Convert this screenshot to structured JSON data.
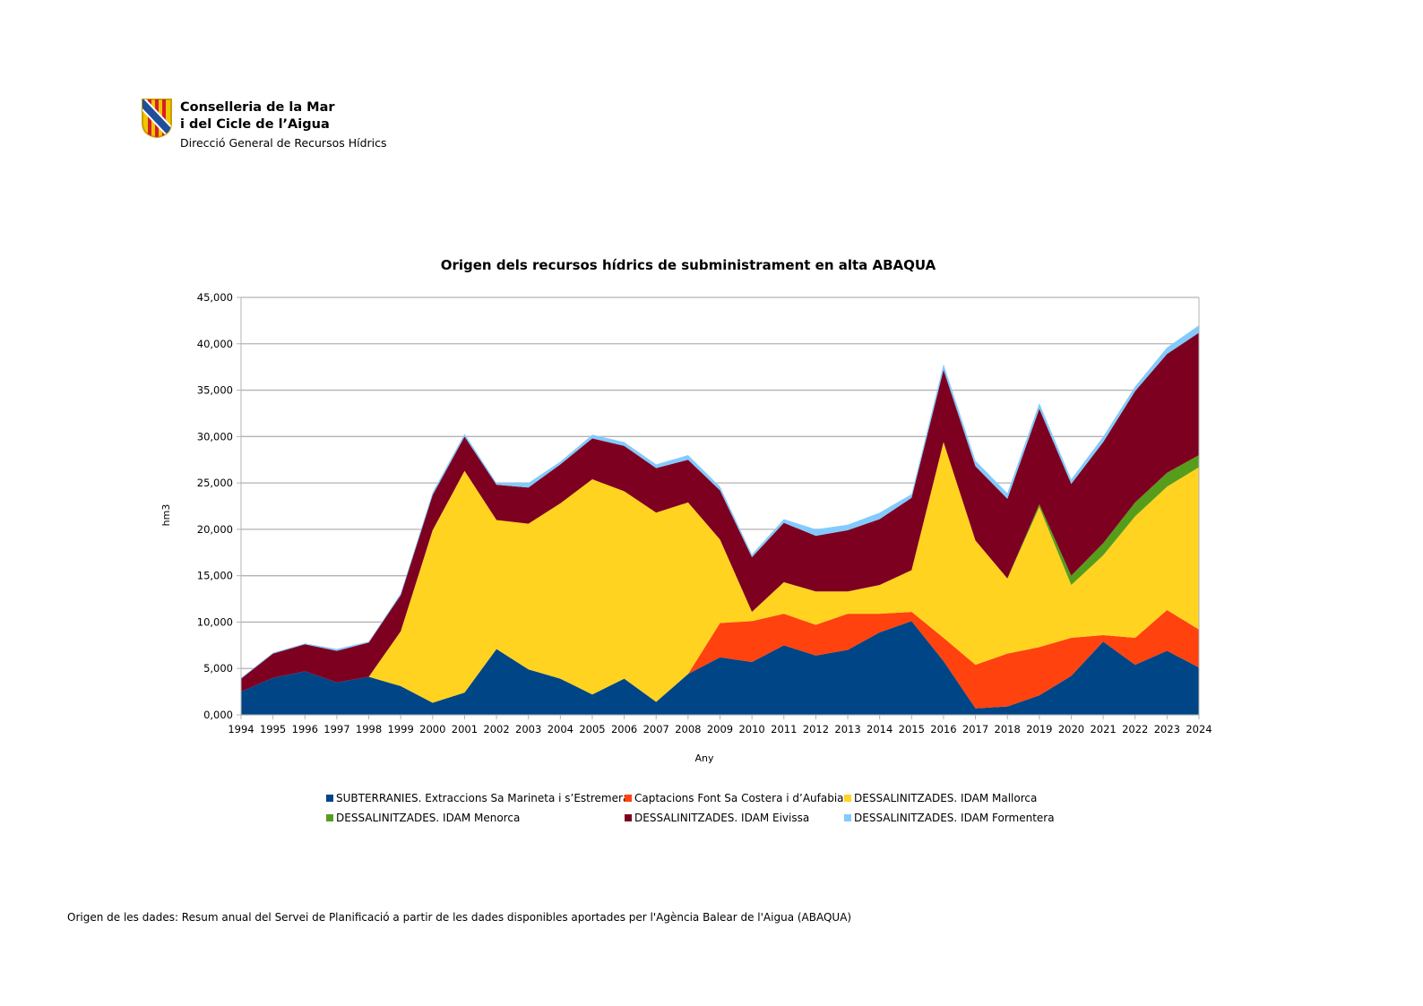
{
  "header": {
    "org_line1": "Conselleria de la Mar",
    "org_line2": "i del Cicle de l’Aigua",
    "org_line3": "Direcció General de Recursos Hídrics",
    "logo": "balearic-shield"
  },
  "footer": "Origen de les dades: Resum anual del Servei de Planificació a partir de les dades disponibles aportades per l'Agència Balear de l'Aigua (ABAQUA)",
  "chart_data": {
    "type": "area",
    "stacked": true,
    "title": "Origen dels recursos hídrics de subministrament en alta ABAQUA",
    "xlabel": "Any",
    "ylabel": "hm3",
    "ylim": [
      0,
      45000
    ],
    "yticks": [
      0,
      5000,
      10000,
      15000,
      20000,
      25000,
      30000,
      35000,
      40000,
      45000
    ],
    "ytick_labels": [
      "0,000",
      "5,000",
      "10,000",
      "15,000",
      "20,000",
      "25,000",
      "30,000",
      "35,000",
      "40,000",
      "45,000"
    ],
    "grid": true,
    "legend_position": "bottom",
    "x": [
      "1994",
      "1995",
      "1996",
      "1997",
      "1998",
      "1999",
      "2000",
      "2001",
      "2002",
      "2003",
      "2004",
      "2005",
      "2006",
      "2007",
      "2008",
      "2009",
      "2010",
      "2011",
      "2012",
      "2013",
      "2014",
      "2015",
      "2016",
      "2017",
      "2018",
      "2019",
      "2020",
      "2021",
      "2022",
      "2023",
      "2024"
    ],
    "series": [
      {
        "name": "SUBTERRANIES. Extraccions Sa Marineta i s’Estremera",
        "color": "#004586",
        "values": [
          2500,
          4000,
          4700,
          3500,
          4100,
          3100,
          1300,
          2400,
          7100,
          4900,
          3900,
          2200,
          3900,
          1400,
          4400,
          6200,
          5700,
          7500,
          6400,
          7000,
          8900,
          10100,
          5800,
          700,
          900,
          2100,
          4200,
          7900,
          5400,
          6900,
          5100
        ]
      },
      {
        "name": "Captacions Font Sa Costera i d’Aufabia",
        "color": "#ff420e",
        "values": [
          0,
          0,
          0,
          0,
          0,
          0,
          0,
          0,
          0,
          0,
          0,
          0,
          0,
          0,
          0,
          3700,
          4400,
          3400,
          3300,
          3900,
          2000,
          1000,
          2500,
          4700,
          5700,
          5200,
          4100,
          700,
          2900,
          4400,
          4100
        ]
      },
      {
        "name": "DESSALINITZADES. IDAM Mallorca",
        "color": "#ffd320",
        "values": [
          0,
          0,
          0,
          0,
          0,
          5900,
          18600,
          23900,
          13900,
          15700,
          18900,
          23200,
          20200,
          20400,
          18500,
          9000,
          1000,
          3400,
          3600,
          2400,
          3100,
          4500,
          21100,
          13400,
          8100,
          15100,
          5700,
          8600,
          13100,
          13300,
          17500
        ]
      },
      {
        "name": "DESSALINITZADES. IDAM Menorca",
        "color": "#579d1c",
        "values": [
          0,
          0,
          0,
          0,
          0,
          0,
          0,
          0,
          0,
          0,
          0,
          0,
          0,
          0,
          0,
          0,
          0,
          0,
          0,
          0,
          0,
          0,
          0,
          0,
          0,
          300,
          1000,
          1300,
          1500,
          1500,
          1300
        ]
      },
      {
        "name": "DESSALINITZADES. IDAM Eivissa",
        "color": "#7e0021",
        "values": [
          1400,
          2600,
          2900,
          3400,
          3700,
          3900,
          3800,
          3700,
          3800,
          3900,
          4200,
          4400,
          4900,
          4800,
          4600,
          5300,
          5900,
          6400,
          6000,
          6600,
          7100,
          7800,
          7800,
          8000,
          8600,
          10300,
          9900,
          10900,
          12000,
          12800,
          13200
        ]
      },
      {
        "name": "DESSALINITZADES. IDAM Formentera",
        "color": "#83caff",
        "values": [
          100,
          100,
          100,
          200,
          100,
          200,
          300,
          300,
          200,
          500,
          300,
          400,
          400,
          400,
          500,
          400,
          300,
          400,
          700,
          600,
          700,
          400,
          600,
          600,
          600,
          600,
          500,
          600,
          500,
          700,
          800
        ]
      }
    ]
  }
}
